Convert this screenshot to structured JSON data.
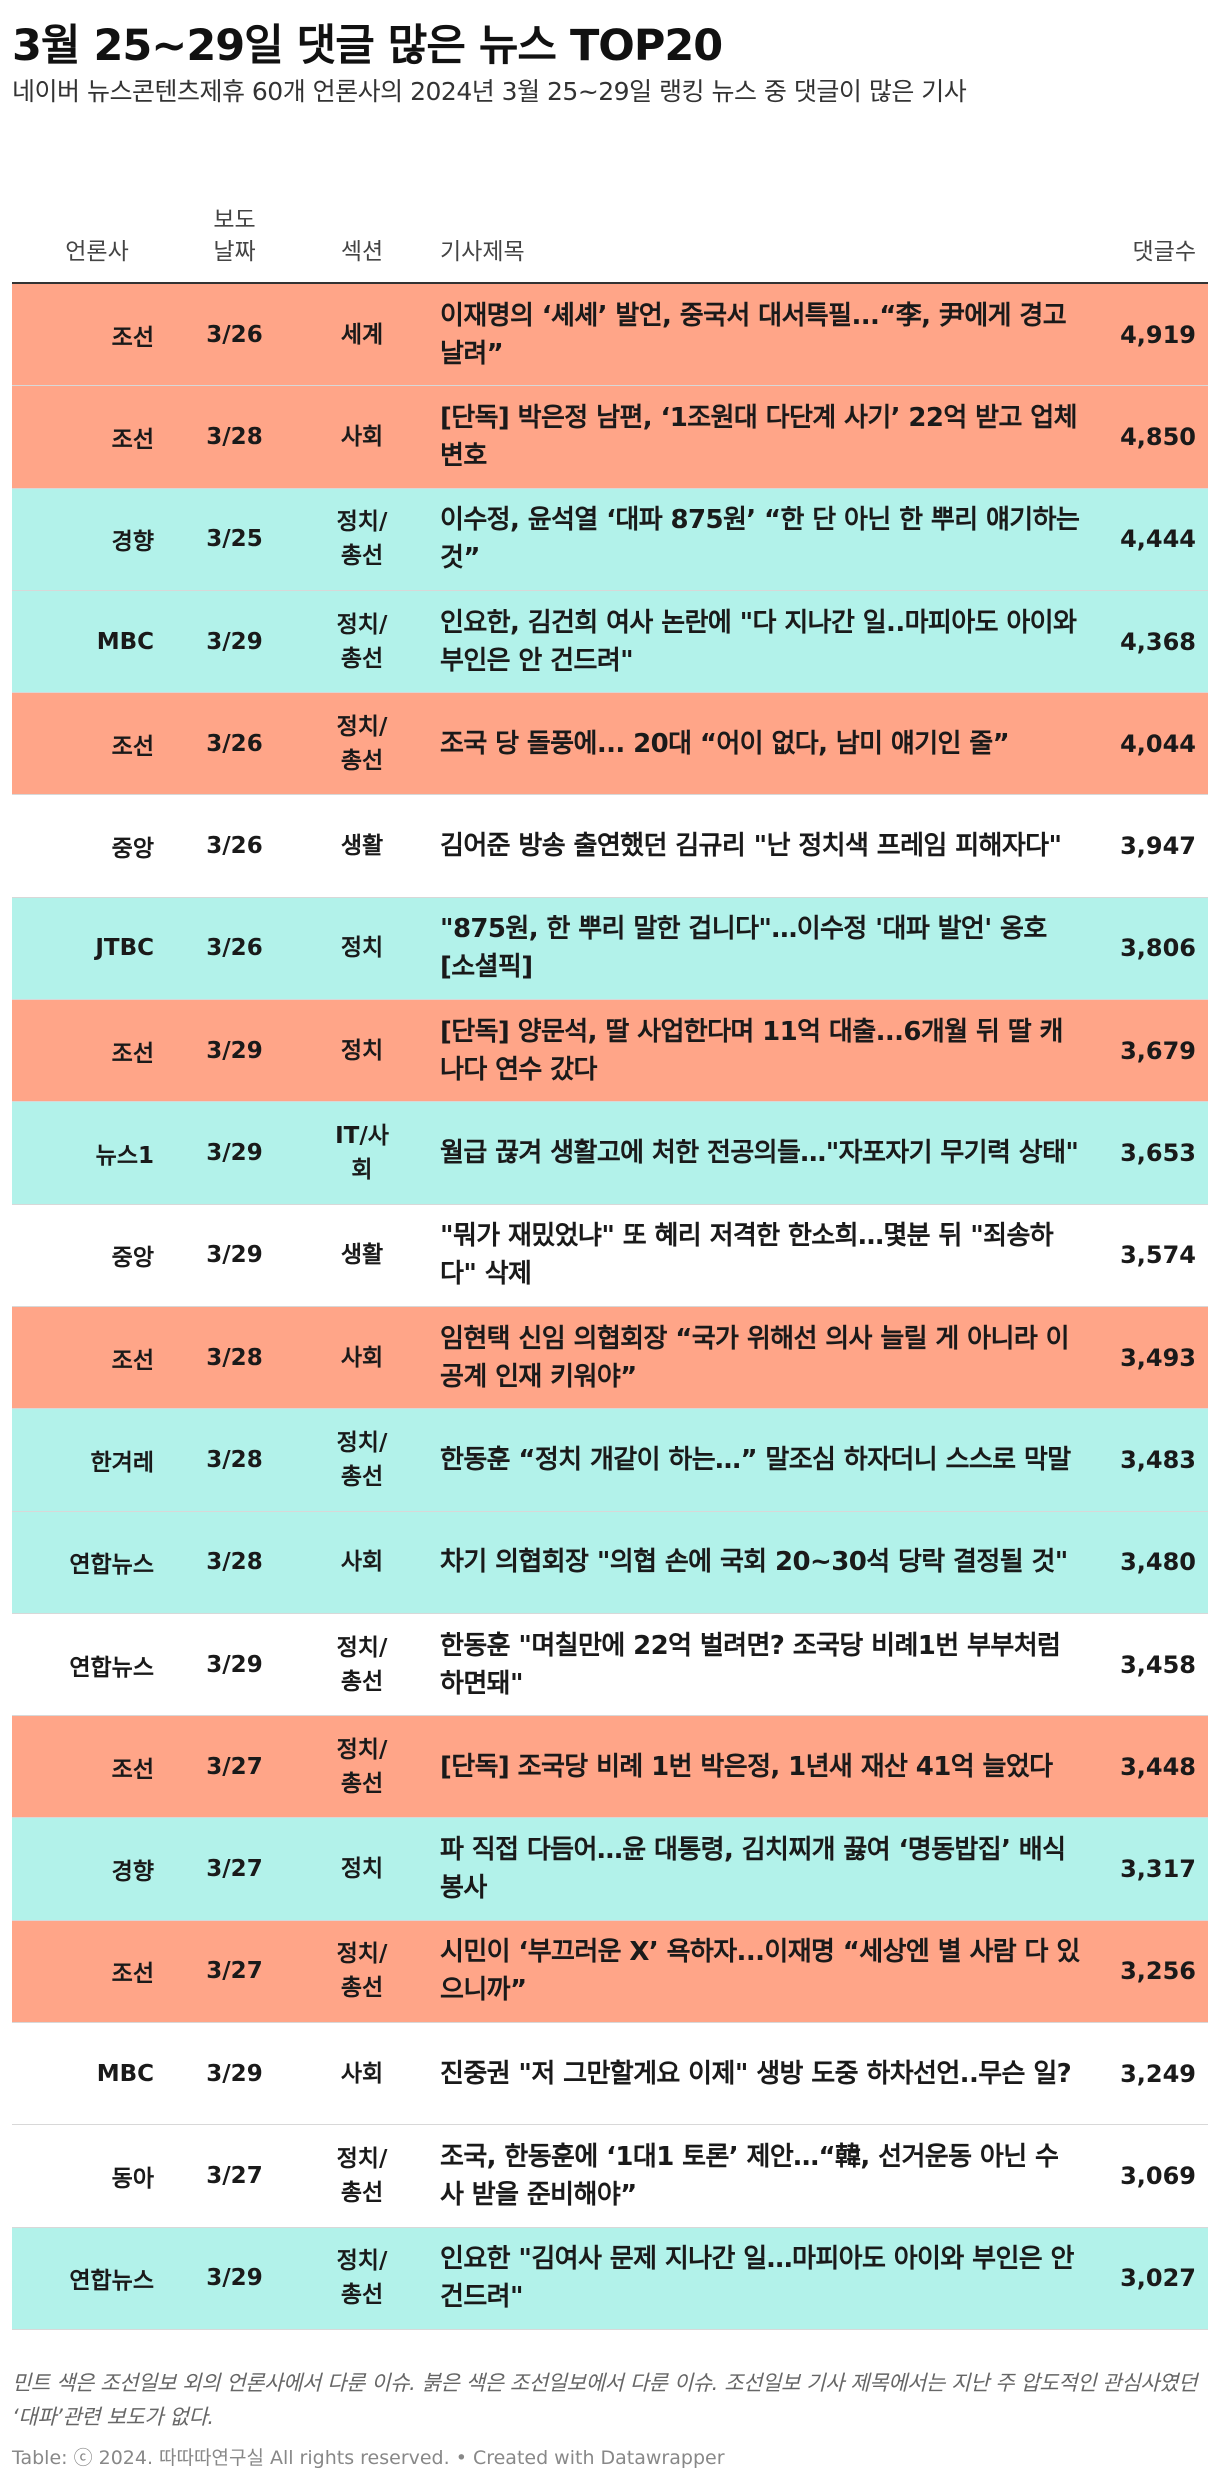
{
  "title": "3월 25~29일 댓글 많은 뉴스 TOP20",
  "subtitle": "네이버 뉴스콘텐츠제휴 60개 언론사의 2024년 3월 25~29일 랭킹 뉴스 중 댓글이 많은 기사",
  "columns": {
    "press": "언론사",
    "date": "보도\n날짜",
    "section": "섹션",
    "headline": "기사제목",
    "comments": "댓글수"
  },
  "colors": {
    "red": "#ffa588",
    "mint": "#b2f2ea",
    "white": "#ffffff"
  },
  "rows": [
    {
      "press": "조선",
      "date": "3/26",
      "section": "세계",
      "headline": "이재명의 ‘셰셰’ 발언, 중국서 대서특필...“李, 尹에게 경고 날려”",
      "comments": "4,919",
      "color": "red"
    },
    {
      "press": "조선",
      "date": "3/28",
      "section": "사회",
      "headline": "[단독] 박은정 남편, ‘1조원대 다단계 사기’ 22억 받고 업체 변호",
      "comments": "4,850",
      "color": "red"
    },
    {
      "press": "경향",
      "date": "3/25",
      "section": "정치/총선",
      "headline": "이수정, 윤석열 ‘대파 875원’ “한 단 아닌 한 뿌리 얘기하는 것”",
      "comments": "4,444",
      "color": "mint"
    },
    {
      "press": "MBC",
      "date": "3/29",
      "section": "정치/총선",
      "headline": "인요한, 김건희 여사 논란에 \"다 지나간 일..마피아도 아이와 부인은 안 건드려\"",
      "comments": "4,368",
      "color": "mint"
    },
    {
      "press": "조선",
      "date": "3/26",
      "section": "정치/총선",
      "headline": "조국 당 돌풍에... 20대 “어이 없다, 남미 얘기인 줄”",
      "comments": "4,044",
      "color": "red"
    },
    {
      "press": "중앙",
      "date": "3/26",
      "section": "생활",
      "headline": "김어준 방송 출연했던 김규리 \"난 정치색 프레임 피해자다\"",
      "comments": "3,947",
      "color": "white"
    },
    {
      "press": "JTBC",
      "date": "3/26",
      "section": "정치",
      "headline": "\"875원, 한 뿌리 말한 겁니다\"…이수정 '대파 발언' 옹호 [소셜픽]",
      "comments": "3,806",
      "color": "mint"
    },
    {
      "press": "조선",
      "date": "3/29",
      "section": "정치",
      "headline": "[단독] 양문석, 딸 사업한다며 11억 대출...6개월 뒤 딸 캐나다 연수 갔다",
      "comments": "3,679",
      "color": "red"
    },
    {
      "press": "뉴스1",
      "date": "3/29",
      "section": "IT/사회",
      "headline": "월급 끊겨 생활고에 처한 전공의들…\"자포자기 무기력 상태\"",
      "comments": "3,653",
      "color": "mint"
    },
    {
      "press": "중앙",
      "date": "3/29",
      "section": "생활",
      "headline": "\"뭐가 재밌었냐\" 또 혜리 저격한 한소희…몇분 뒤 \"죄송하다\" 삭제",
      "comments": "3,574",
      "color": "white"
    },
    {
      "press": "조선",
      "date": "3/28",
      "section": "사회",
      "headline": "임현택 신임 의협회장 “국가 위해선 의사 늘릴 게 아니라 이공계 인재 키워야”",
      "comments": "3,493",
      "color": "red"
    },
    {
      "press": "한겨레",
      "date": "3/28",
      "section": "정치/총선",
      "headline": "한동훈 “정치 개같이 하는…” 말조심 하자더니 스스로 막말",
      "comments": "3,483",
      "color": "mint"
    },
    {
      "press": "연합뉴스",
      "date": "3/28",
      "section": "사회",
      "headline": "차기 의협회장 \"의협 손에 국회 20~30석 당락 결정될 것\"",
      "comments": "3,480",
      "color": "mint"
    },
    {
      "press": "연합뉴스",
      "date": "3/29",
      "section": "정치/총선",
      "headline": "한동훈 \"며칠만에 22억 벌려면? 조국당 비례1번 부부처럼 하면돼\"",
      "comments": "3,458",
      "color": "white"
    },
    {
      "press": "조선",
      "date": "3/27",
      "section": "정치/총선",
      "headline": "[단독] 조국당 비례 1번 박은정, 1년새 재산 41억 늘었다",
      "comments": "3,448",
      "color": "red"
    },
    {
      "press": "경향",
      "date": "3/27",
      "section": "정치",
      "headline": "파 직접 다듬어…윤 대통령, 김치찌개 끓여 ‘명동밥집’ 배식 봉사",
      "comments": "3,317",
      "color": "mint"
    },
    {
      "press": "조선",
      "date": "3/27",
      "section": "정치/총선",
      "headline": "시민이 ‘부끄러운 X’ 욕하자...이재명 “세상엔 별 사람 다 있으니까”",
      "comments": "3,256",
      "color": "red"
    },
    {
      "press": "MBC",
      "date": "3/29",
      "section": "사회",
      "headline": "진중권 \"저 그만할게요 이제\" 생방 도중 하차선언..무슨 일?",
      "comments": "3,249",
      "color": "white"
    },
    {
      "press": "동아",
      "date": "3/27",
      "section": "정치/총선",
      "headline": "조국, 한동훈에 ‘1대1 토론’ 제안…“韓, 선거운동 아닌 수사 받을 준비해야”",
      "comments": "3,069",
      "color": "white"
    },
    {
      "press": "연합뉴스",
      "date": "3/29",
      "section": "정치/총선",
      "headline": "인요한 \"김여사 문제 지나간 일…마피아도 아이와 부인은 안 건드려\"",
      "comments": "3,027",
      "color": "mint"
    }
  ],
  "notes": "민트 색은 조선일보 외의 언론사에서 다룬 이슈. 붉은 색은 조선일보에서 다룬 이슈. 조선일보 기사 제목에서는 지난 주 압도적인 관심사였던 ‘대파’관련 보도가 없다.",
  "credit": "Table: ⓒ 2024. 따따따연구실 All rights reserved. • Created with Datawrapper"
}
